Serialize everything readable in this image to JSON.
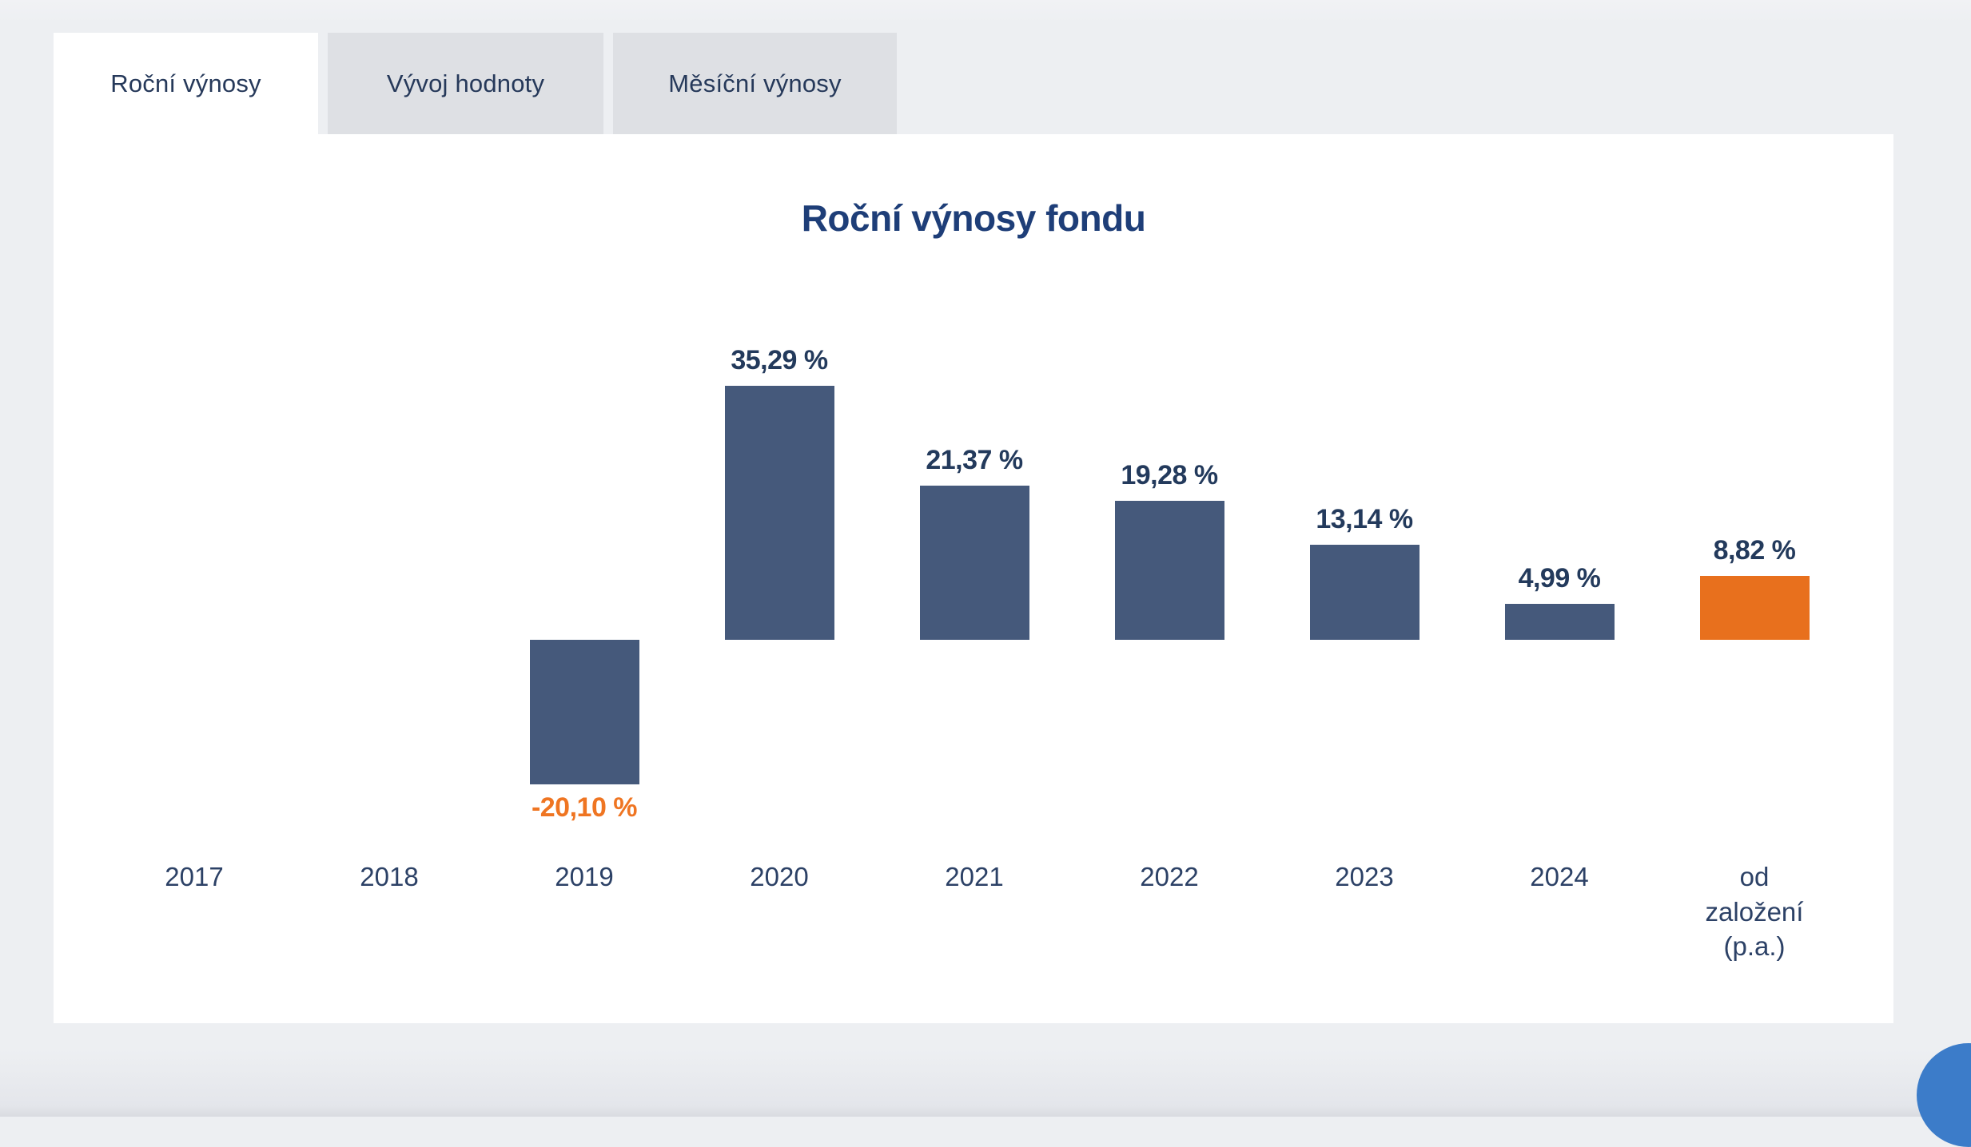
{
  "tabs": [
    {
      "label": "Roční výnosy",
      "active": true
    },
    {
      "label": "Vývoj hodnoty",
      "active": false
    },
    {
      "label": "Měsíční výnosy",
      "active": false
    }
  ],
  "chart_data": {
    "type": "bar",
    "title": "Roční výnosy fondu",
    "xlabel": "",
    "ylabel": "",
    "grid": false,
    "legend": "none",
    "ylim": [
      -25,
      40
    ],
    "categories": [
      "2017",
      "2018",
      "2019",
      "2020",
      "2021",
      "2022",
      "2023",
      "2024",
      "od\nzaložení\n(p.a.)"
    ],
    "values": [
      null,
      null,
      -20.1,
      35.29,
      21.37,
      19.28,
      13.14,
      4.99,
      8.82
    ],
    "value_labels": [
      "",
      "",
      "-20,10 %",
      "35,29 %",
      "21,37 %",
      "19,28 %",
      "13,14 %",
      "4,99 %",
      "8,82 %"
    ],
    "highlight_index": 8,
    "colors": {
      "bar": "#45597B",
      "highlight_bar": "#E8701D",
      "positive_label": "#233A5C",
      "negative_label": "#EF7522"
    }
  },
  "colors": {
    "page_background": "#EDEFF2",
    "panel_background": "#FFFFFF",
    "inactive_tab_background": "#DEE0E4",
    "tab_text": "#26395A",
    "title_text": "#1E3E78",
    "axis_text": "#2C4166",
    "chat_button": "#3C7CC9"
  },
  "widgets": {
    "chat_button_icon": "chat-bubble-icon"
  }
}
